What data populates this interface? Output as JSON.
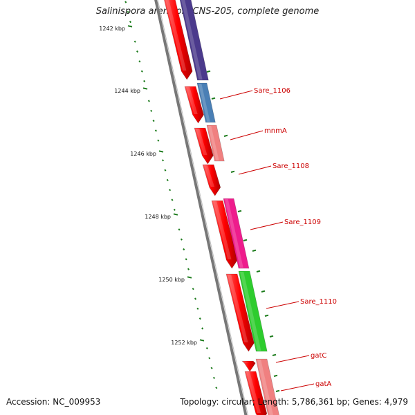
{
  "title": "Salinispora arenicola CNS-205, complete genome",
  "footer": {
    "accession": "Accession: NC_009953",
    "summary": "Topology: circular; Length: 5,786,361 bp; Genes: 4,979"
  },
  "colors": {
    "backbone": "#777777",
    "tick": "#1a7a1a",
    "cds_strand": "#ff0000",
    "label": "#cc0000"
  },
  "ticks": [
    {
      "label": "1242 kbp",
      "kbp": 1242
    },
    {
      "label": "1244 kbp",
      "kbp": 1244
    },
    {
      "label": "1246 kbp",
      "kbp": 1246
    },
    {
      "label": "1248 kbp",
      "kbp": 1248
    },
    {
      "label": "1250 kbp",
      "kbp": 1250
    },
    {
      "label": "1252 kbp",
      "kbp": 1252
    }
  ],
  "genes": [
    {
      "name": "",
      "color": "#4b3a8c"
    },
    {
      "name": "Sare_1106",
      "color": "#4a7fb5"
    },
    {
      "name": "mnmA",
      "color": "#f08080"
    },
    {
      "name": "Sare_1108",
      "color": ""
    },
    {
      "name": "Sare_1109",
      "color": "#ee1c8c"
    },
    {
      "name": "Sare_1110",
      "color": "#2ecc2e"
    },
    {
      "name": "gatC",
      "color": ""
    },
    {
      "name": "gatA",
      "color": "#f08080"
    }
  ]
}
